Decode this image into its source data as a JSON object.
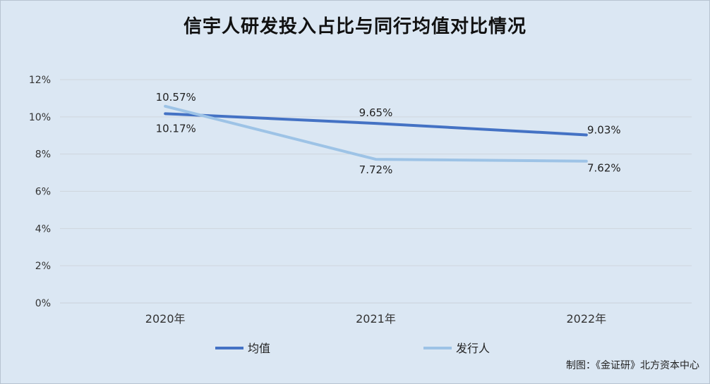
{
  "chart_data": {
    "type": "line",
    "title": "信宇人研发投入占比与同行均值对比情况",
    "categories": [
      "2020年",
      "2021年",
      "2022年"
    ],
    "yticks": [
      "0%",
      "2%",
      "4%",
      "6%",
      "8%",
      "10%",
      "12%"
    ],
    "ylim": [
      0,
      12
    ],
    "grid": true,
    "legend_position": "bottom",
    "series": [
      {
        "name": "均值",
        "values": [
          10.17,
          9.65,
          9.03
        ],
        "labels": [
          "10.17%",
          "9.65%",
          "9.03%"
        ],
        "color": "#4472c4"
      },
      {
        "name": "发行人",
        "values": [
          10.57,
          7.72,
          7.62
        ],
        "labels": [
          "10.57%",
          "7.72%",
          "7.62%"
        ],
        "color": "#9dc3e6"
      }
    ]
  },
  "credit": "制图：《金证研》北方资本中心"
}
